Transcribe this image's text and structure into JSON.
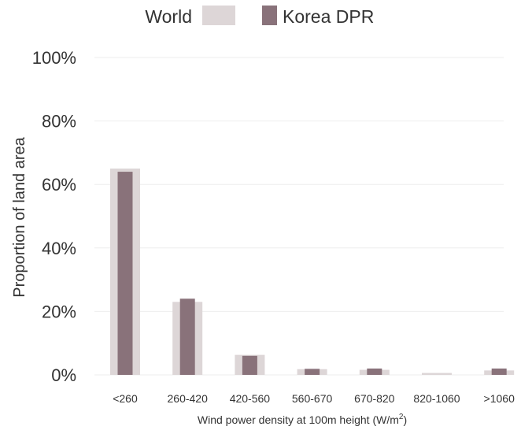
{
  "chart_data": {
    "type": "bar",
    "title": "",
    "categories": [
      "<260",
      "260-420",
      "420-560",
      "560-670",
      "670-820",
      "820-1060",
      ">1060"
    ],
    "series": [
      {
        "name": "World",
        "color": "#ddd6d7",
        "values": [
          65,
          23,
          6.3,
          1.8,
          1.6,
          0.6,
          1.4
        ]
      },
      {
        "name": "Korea DPR",
        "color": "#89727a",
        "values": [
          64,
          24,
          6.0,
          1.9,
          2.0,
          0,
          2.0
        ]
      }
    ],
    "xlabel": "Wind power density at 100m height (W/m",
    "xlabel_sup": "2",
    "xlabel_end": ")",
    "ylabel": "Proportion of land area",
    "ylim": [
      0,
      100
    ],
    "yticks": [
      0,
      20,
      40,
      60,
      80,
      100
    ],
    "ytick_labels": [
      "0%",
      "20%",
      "40%",
      "60%",
      "80%",
      "100%"
    ],
    "grid": true,
    "legend_position": "top"
  }
}
